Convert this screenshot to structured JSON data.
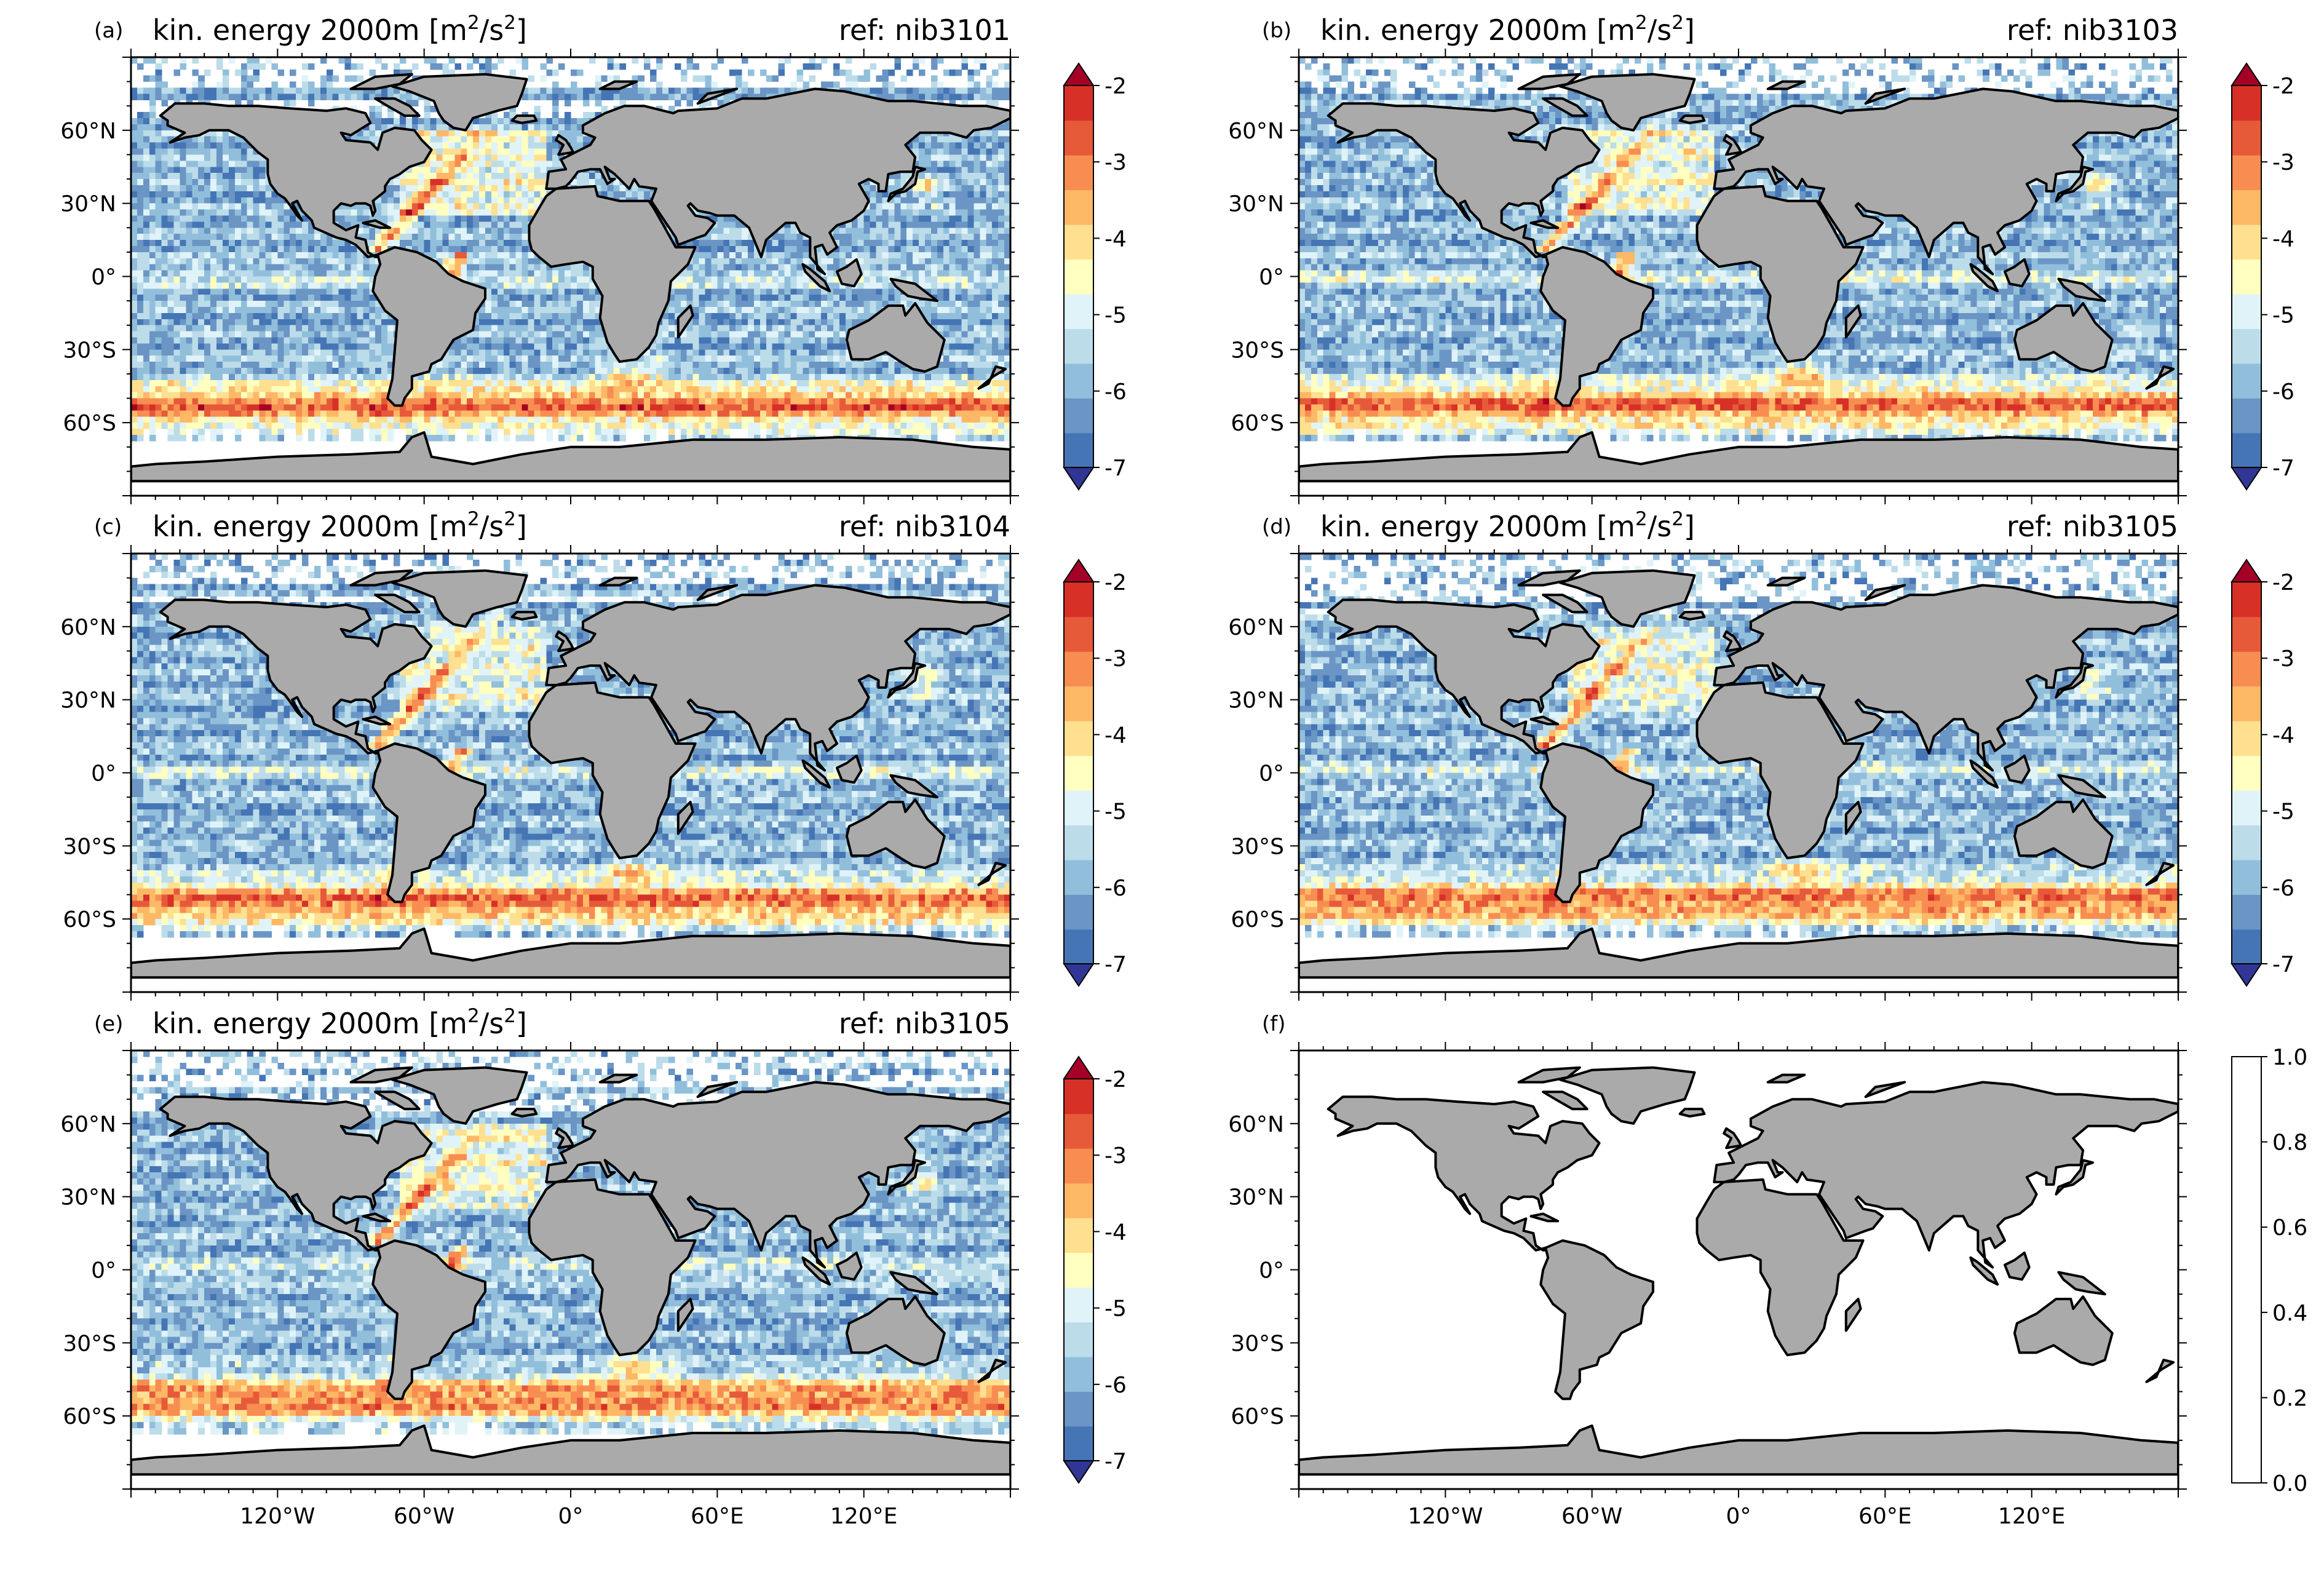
{
  "colors": {
    "land": "#aaaaaa",
    "coast": "#000000",
    "background": "#ffffff",
    "colormap": [
      "#313695",
      "#4575b4",
      "#6a95c4",
      "#91bfdb",
      "#bcdcea",
      "#e0f3f8",
      "#ffffbf",
      "#fee090",
      "#fdb866",
      "#f88d52",
      "#e65a3a",
      "#d73027",
      "#a50026"
    ]
  },
  "chart_data": [
    {
      "id": "a",
      "type": "heatmap",
      "panel_label": "(a)",
      "title_main": "kin. energy 2000m [m",
      "title_sup1": "2",
      "title_mid": "/s",
      "title_sup2": "2",
      "title_end": "]",
      "ref": "ref: nib3101",
      "quantity": "log10 kinetic energy at 2000 m depth",
      "colorbar": {
        "min": -7,
        "max": -2,
        "extend": "both",
        "ticks": [
          "-2",
          "-3",
          "-4",
          "-5",
          "-6",
          "-7"
        ]
      },
      "latitude_ticks": [
        "60°N",
        "30°N",
        "0°",
        "30°S",
        "60°S"
      ],
      "longitude_ticks": [],
      "features": {
        "western_boundary_atlantic": "high",
        "antarctic_circumpolar": "high",
        "interior_pacific": "low"
      }
    },
    {
      "id": "b",
      "type": "heatmap",
      "panel_label": "(b)",
      "title_main": "kin. energy 2000m [m",
      "title_sup1": "2",
      "title_mid": "/s",
      "title_sup2": "2",
      "title_end": "]",
      "ref": "ref: nib3103",
      "quantity": "log10 kinetic energy at 2000 m depth",
      "colorbar": {
        "min": -7,
        "max": -2,
        "extend": "both",
        "ticks": [
          "-2",
          "-3",
          "-4",
          "-5",
          "-6",
          "-7"
        ]
      },
      "latitude_ticks": [
        "60°N",
        "30°N",
        "0°",
        "30°S",
        "60°S"
      ],
      "longitude_ticks": []
    },
    {
      "id": "c",
      "type": "heatmap",
      "panel_label": "(c)",
      "title_main": "kin. energy 2000m [m",
      "title_sup1": "2",
      "title_mid": "/s",
      "title_sup2": "2",
      "title_end": "]",
      "ref": "ref: nib3104",
      "quantity": "log10 kinetic energy at 2000 m depth",
      "colorbar": {
        "min": -7,
        "max": -2,
        "extend": "both",
        "ticks": [
          "-2",
          "-3",
          "-4",
          "-5",
          "-6",
          "-7"
        ]
      },
      "latitude_ticks": [
        "60°N",
        "30°N",
        "0°",
        "30°S",
        "60°S"
      ],
      "longitude_ticks": []
    },
    {
      "id": "d",
      "type": "heatmap",
      "panel_label": "(d)",
      "title_main": "kin. energy 2000m [m",
      "title_sup1": "2",
      "title_mid": "/s",
      "title_sup2": "2",
      "title_end": "]",
      "ref": "ref: nib3105",
      "quantity": "log10 kinetic energy at 2000 m depth",
      "colorbar": {
        "min": -7,
        "max": -2,
        "extend": "both",
        "ticks": [
          "-2",
          "-3",
          "-4",
          "-5",
          "-6",
          "-7"
        ]
      },
      "latitude_ticks": [
        "60°N",
        "30°N",
        "0°",
        "30°S",
        "60°S"
      ],
      "longitude_ticks": []
    },
    {
      "id": "e",
      "type": "heatmap",
      "panel_label": "(e)",
      "title_main": "kin. energy 2000m [m",
      "title_sup1": "2",
      "title_mid": "/s",
      "title_sup2": "2",
      "title_end": "]",
      "ref": "ref: nib3105",
      "quantity": "log10 kinetic energy at 2000 m depth",
      "colorbar": {
        "min": -7,
        "max": -2,
        "extend": "both",
        "ticks": [
          "-2",
          "-3",
          "-4",
          "-5",
          "-6",
          "-7"
        ]
      },
      "latitude_ticks": [
        "60°N",
        "30°N",
        "0°",
        "30°S",
        "60°S"
      ],
      "longitude_ticks": [
        "120°W",
        "60°W",
        "0°",
        "60°E",
        "120°E"
      ]
    },
    {
      "id": "f",
      "type": "heatmap",
      "panel_label": "(f)",
      "title_main": "",
      "title_sup1": "",
      "title_mid": "",
      "title_sup2": "",
      "title_end": "",
      "ref": "",
      "empty": true,
      "colorbar": {
        "min": 0.0,
        "max": 1.0,
        "extend": "neither",
        "ticks": [
          "1.0",
          "0.8",
          "0.6",
          "0.4",
          "0.2",
          "0.0"
        ]
      },
      "latitude_ticks": [
        "60°N",
        "30°N",
        "0°",
        "30°S",
        "60°S"
      ],
      "longitude_ticks": [
        "120°W",
        "60°W",
        "0°",
        "60°E",
        "120°E"
      ]
    }
  ]
}
